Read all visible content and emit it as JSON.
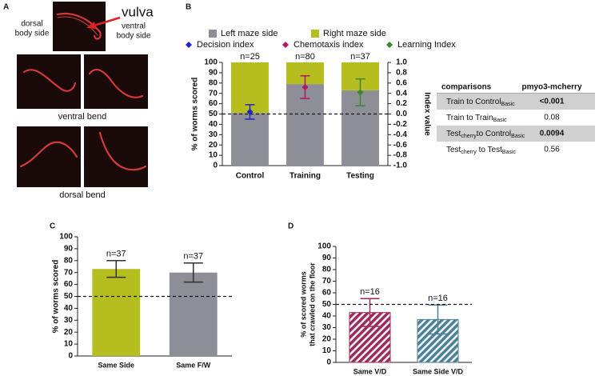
{
  "panel_a": {
    "label": "A",
    "top_left": [
      "dorsal",
      "body side"
    ],
    "arrow_label": "vulva",
    "top_right": [
      "ventral",
      "body side"
    ],
    "middle_caption": "ventral bend",
    "bottom_caption": "dorsal bend"
  },
  "chart_data": [
    {
      "panel": "B",
      "type": "stacked_bar",
      "categories": [
        "Control",
        "Training",
        "Testing"
      ],
      "bar_labels": [
        "n=25",
        "n=80",
        "n=37"
      ],
      "series": [
        {
          "name": "Left maze side",
          "color": "#8e8e96",
          "values": [
            51,
            79,
            73
          ]
        },
        {
          "name": "Right maze side",
          "color": "#b5bd1f",
          "values": [
            49,
            21,
            27
          ]
        },
        {
          "name": "Decision index",
          "color": "#2323c8",
          "marker": "diamond",
          "axis": "y2",
          "values": [
            0.04,
            null,
            null
          ],
          "errors": [
            0.14,
            null,
            null
          ]
        },
        {
          "name": "Chemotaxis index",
          "color": "#b0185a",
          "marker": "diamond",
          "axis": "y2",
          "values": [
            null,
            0.52,
            null
          ],
          "errors": [
            null,
            0.22,
            null
          ]
        },
        {
          "name": "Learning Index",
          "color": "#3a8a2a",
          "marker": "diamond",
          "axis": "y2",
          "values": [
            null,
            null,
            0.42
          ],
          "errors": [
            null,
            null,
            0.26
          ]
        }
      ],
      "ylabel": "% of worms scored",
      "y2label": "Index value",
      "ylim": [
        0,
        100
      ],
      "yticks": [
        0,
        10,
        20,
        30,
        40,
        50,
        60,
        70,
        80,
        90,
        100
      ],
      "y2lim": [
        -1,
        1
      ],
      "y2ticks": [
        {
          "value": -1,
          "label": "-1.0"
        },
        {
          "value": -0.8,
          "label": "-0.8"
        },
        {
          "value": -0.6,
          "label": "-0.6"
        },
        {
          "value": -0.4,
          "label": "-0.4"
        },
        {
          "value": -0.2,
          "label": "-0.2"
        },
        {
          "value": 0,
          "label": "0.0"
        },
        {
          "value": 0.2,
          "label": "0.2"
        },
        {
          "value": 0.4,
          "label": "0.4"
        },
        {
          "value": 0.6,
          "label": "0.6"
        },
        {
          "value": 0.8,
          "label": "0.8"
        },
        {
          "value": 1,
          "label": "1.0"
        }
      ],
      "reference_line": 50
    },
    {
      "panel": "C",
      "type": "bar",
      "categories": [
        "Same Side",
        "Same F/W"
      ],
      "values": [
        73,
        70
      ],
      "errors": [
        7,
        8
      ],
      "colors": [
        "#b5bd1f",
        "#8e8e96"
      ],
      "bar_labels": [
        "n=37",
        "n=37"
      ],
      "ylabel": [
        "% of worms scored"
      ],
      "ylim": [
        0,
        100
      ],
      "yticks": [
        0,
        10,
        20,
        30,
        40,
        50,
        60,
        70,
        80,
        90,
        100
      ],
      "reference_line": 50
    },
    {
      "panel": "D",
      "type": "bar",
      "hatch": true,
      "categories": [
        "Same V/D",
        "Same Side V/D"
      ],
      "values": [
        43,
        37
      ],
      "errors": [
        12,
        12.5
      ],
      "colors": [
        "#9b2a5a",
        "#4a7f94"
      ],
      "bar_labels": [
        "n=16",
        "n=16"
      ],
      "ylabel": [
        "% of scored worms",
        "that crawled on the floor"
      ],
      "ylim": [
        0,
        100
      ],
      "yticks": [
        0,
        10,
        20,
        30,
        40,
        50,
        60,
        70,
        80,
        90,
        100
      ],
      "reference_line": 50
    }
  ],
  "table": {
    "header": [
      "comparisons",
      "pmyo3-mcherry"
    ],
    "rows": [
      {
        "label": [
          {
            "text": "Train to Control"
          },
          {
            "text": "Basic",
            "sub": true
          }
        ],
        "value": "<0.001",
        "bold": true,
        "shaded": true
      },
      {
        "label": [
          {
            "text": "Train to Train"
          },
          {
            "text": "Basic",
            "sub": true
          }
        ],
        "value": "0.08",
        "bold": false,
        "shaded": false
      },
      {
        "label": [
          {
            "text": "Test"
          },
          {
            "text": "cherry",
            "sub": true
          },
          {
            "text": "to Control"
          },
          {
            "text": "Basic",
            "sub": true
          }
        ],
        "value": "0.0094",
        "bold": true,
        "shaded": true
      },
      {
        "label": [
          {
            "text": "Test"
          },
          {
            "text": "cherry",
            "sub": true
          },
          {
            "text": " to Test"
          },
          {
            "text": "Basic",
            "sub": true
          }
        ],
        "value": "0.56",
        "bold": false,
        "shaded": false
      }
    ]
  }
}
